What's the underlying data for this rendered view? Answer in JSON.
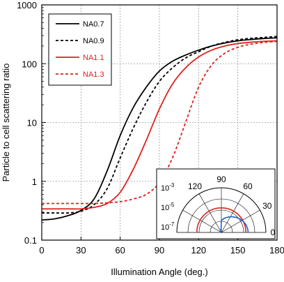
{
  "chart_data": {
    "type": "line",
    "title": "",
    "xlabel": "Illumination Angle (deg.)",
    "ylabel": "Particle to cell scattering ratio",
    "xlim": [
      0,
      180
    ],
    "ylim": [
      0.1,
      1000
    ],
    "yscale": "log",
    "grid": true,
    "legend_position": "top-left",
    "x_ticks": [
      0,
      30,
      60,
      90,
      120,
      150,
      180
    ],
    "x_tick_labels": [
      "0",
      "30",
      "60",
      "90",
      "120",
      "150",
      "180"
    ],
    "y_ticks": [
      0.1,
      1,
      10,
      100,
      1000
    ],
    "y_tick_labels": [
      "0.1",
      "1",
      "10",
      "100",
      "1000"
    ],
    "series": [
      {
        "name": "NA0.7",
        "color": "#000000",
        "dash": "solid",
        "x": [
          0,
          10,
          20,
          30,
          40,
          50,
          60,
          70,
          80,
          90,
          100,
          110,
          120,
          130,
          140,
          150,
          160,
          170,
          180
        ],
        "y": [
          0.22,
          0.23,
          0.26,
          0.32,
          0.5,
          1.5,
          6,
          18,
          40,
          75,
          110,
          140,
          170,
          200,
          225,
          245,
          258,
          268,
          275
        ]
      },
      {
        "name": "NA0.9",
        "color": "#000000",
        "dash": "dashed",
        "x": [
          0,
          10,
          20,
          30,
          40,
          50,
          60,
          70,
          80,
          90,
          100,
          110,
          120,
          130,
          140,
          150,
          160,
          170,
          180
        ],
        "y": [
          0.29,
          0.29,
          0.29,
          0.31,
          0.4,
          0.75,
          2.5,
          8,
          22,
          50,
          85,
          125,
          160,
          200,
          230,
          255,
          270,
          280,
          290
        ]
      },
      {
        "name": "NA1.1",
        "color": "#e0201c",
        "dash": "solid",
        "x": [
          0,
          10,
          20,
          30,
          40,
          50,
          60,
          70,
          80,
          90,
          100,
          110,
          120,
          130,
          140,
          150,
          160,
          170,
          180
        ],
        "y": [
          0.34,
          0.34,
          0.34,
          0.34,
          0.36,
          0.42,
          0.65,
          1.6,
          5,
          17,
          45,
          85,
          130,
          170,
          200,
          220,
          232,
          240,
          245
        ]
      },
      {
        "name": "NA1.3",
        "color": "#e0201c",
        "dash": "dashed",
        "x": [
          0,
          10,
          20,
          30,
          40,
          50,
          60,
          70,
          80,
          90,
          100,
          110,
          120,
          130,
          140,
          150,
          160,
          170,
          180
        ],
        "y": [
          0.42,
          0.42,
          0.42,
          0.42,
          0.42,
          0.43,
          0.45,
          0.5,
          0.6,
          0.95,
          2.5,
          10,
          40,
          95,
          150,
          190,
          215,
          230,
          240
        ]
      }
    ],
    "inset": {
      "type": "polar",
      "r_tick_labels": [
        "10",
        "10",
        "10"
      ],
      "r_tick_exponents": [
        "-3",
        "-5",
        "-7"
      ],
      "angle_ticks": [
        0,
        30,
        60,
        90,
        120
      ],
      "angle_tick_labels": [
        "0",
        "30",
        "60",
        "90",
        "120"
      ],
      "curves": [
        {
          "color": "#e0201c",
          "theta_deg": [
            0,
            180
          ],
          "r": [
            0.55,
            0.55
          ],
          "shape": "semicircle"
        },
        {
          "color": "#1f5fcf",
          "theta_deg": [
            0,
            180
          ],
          "r": [
            0.6,
            0.0
          ],
          "shape": "lobe"
        }
      ]
    }
  }
}
